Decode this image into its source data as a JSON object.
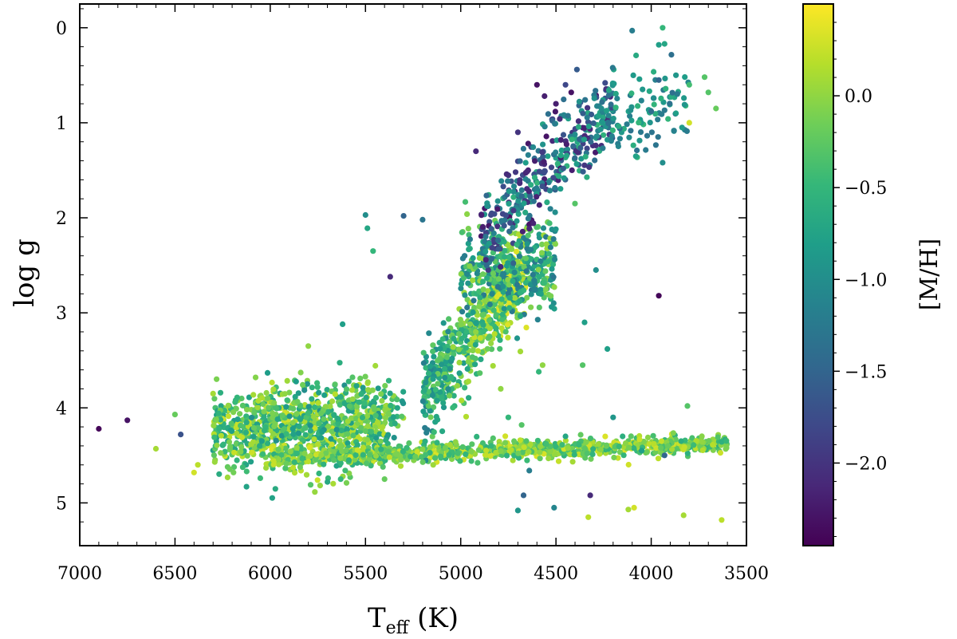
{
  "chart_data": {
    "type": "scatter",
    "title": "",
    "xlabel": "T",
    "xlabel_sub": "eff",
    "xlabel_unit": " (K)",
    "ylabel": "log g",
    "colorbar_label": "[M/H]",
    "xlim": [
      7000,
      3500
    ],
    "ylim": [
      5.45,
      -0.25
    ],
    "x_inverted": true,
    "y_inverted": true,
    "xticks": [
      7000,
      6500,
      6000,
      5500,
      5000,
      4500,
      4000,
      3500
    ],
    "xtick_labels": [
      "7000",
      "6500",
      "6000",
      "5500",
      "5000",
      "4500",
      "4000",
      "3500"
    ],
    "yticks": [
      0,
      1,
      2,
      3,
      4,
      5
    ],
    "ytick_labels": [
      "0",
      "1",
      "2",
      "3",
      "4",
      "5"
    ],
    "colorbar_range": [
      -2.45,
      0.5
    ],
    "colorbar_ticks": [
      0.0,
      -0.5,
      -1.0,
      -1.5,
      -2.0
    ],
    "colorbar_tick_labels": [
      "0.0",
      "−0.5",
      "−1.0",
      "−1.5",
      "−2.0"
    ],
    "colormap": "viridis",
    "colormap_stops": [
      "#440154",
      "#482878",
      "#3e4989",
      "#31688e",
      "#26828e",
      "#1f9e89",
      "#35b779",
      "#6ece58",
      "#b5de2b",
      "#fde725"
    ],
    "grid": false,
    "legend": "none",
    "series": [
      {
        "name": "",
        "points": [
          [
            6900,
            4.22,
            -2.4
          ],
          [
            6750,
            4.13,
            -2.3
          ],
          [
            6600,
            4.43,
            0.1
          ],
          [
            6500,
            4.07,
            -0.2
          ],
          [
            6470,
            4.28,
            -1.7
          ],
          [
            6400,
            4.68,
            0.3
          ],
          [
            6380,
            4.6,
            0.2
          ],
          [
            6300,
            3.85,
            0.1
          ],
          [
            5800,
            3.35,
            0.0
          ],
          [
            5620,
            3.12,
            -0.8
          ],
          [
            5630,
            4.75,
            -0.5
          ],
          [
            5400,
            4.75,
            -0.2
          ],
          [
            5500,
            1.97,
            -1.0
          ],
          [
            5490,
            2.11,
            -0.7
          ],
          [
            5460,
            2.35,
            -0.5
          ],
          [
            5370,
            2.62,
            -2.1
          ],
          [
            5300,
            1.98,
            -1.5
          ],
          [
            5200,
            2.02,
            -1.3
          ],
          [
            4920,
            1.3,
            -2.1
          ],
          [
            4600,
            0.6,
            -2.3
          ],
          [
            4560,
            0.72,
            -2.2
          ],
          [
            4450,
            0.6,
            -1.8
          ],
          [
            4390,
            0.44,
            -1.6
          ],
          [
            4420,
            0.68,
            -2.3
          ],
          [
            4500,
            0.8,
            -2.2
          ],
          [
            4480,
            0.96,
            -2.1
          ],
          [
            4700,
            1.1,
            -2.0
          ],
          [
            4100,
            0.03,
            -1.2
          ],
          [
            3940,
            0.0,
            -0.5
          ],
          [
            3960,
            0.18,
            -0.8
          ],
          [
            3930,
            0.17,
            -0.7
          ],
          [
            3960,
            0.55,
            -1.5
          ],
          [
            3870,
            0.5,
            -0.9
          ],
          [
            3800,
            0.6,
            -0.4
          ],
          [
            3720,
            0.52,
            -0.3
          ],
          [
            3700,
            0.68,
            -0.3
          ],
          [
            3660,
            0.85,
            -0.2
          ],
          [
            3800,
            1.0,
            0.3
          ],
          [
            3870,
            0.9,
            -0.8
          ],
          [
            3940,
            1.42,
            -1.0
          ],
          [
            4000,
            0.88,
            -1.4
          ],
          [
            3960,
            2.82,
            -2.4
          ],
          [
            4400,
            1.85,
            -0.3
          ],
          [
            4290,
            2.55,
            -1.0
          ],
          [
            4350,
            3.1,
            -0.8
          ],
          [
            4360,
            3.55,
            -0.3
          ],
          [
            4230,
            3.38,
            -0.8
          ],
          [
            4200,
            4.1,
            -0.9
          ],
          [
            4150,
            4.3,
            -0.6
          ],
          [
            4050,
            4.45,
            -0.8
          ],
          [
            3930,
            4.5,
            -1.5
          ],
          [
            3810,
            3.98,
            -0.3
          ],
          [
            4450,
            4.3,
            -0.7
          ],
          [
            4550,
            4.38,
            -0.4
          ],
          [
            4640,
            4.66,
            -1.2
          ],
          [
            4670,
            4.92,
            -1.5
          ],
          [
            4320,
            4.92,
            -2.1
          ],
          [
            4510,
            5.05,
            -1.1
          ],
          [
            4700,
            5.08,
            -0.9
          ],
          [
            4330,
            5.15,
            0.2
          ],
          [
            4120,
            5.07,
            0.1
          ],
          [
            4090,
            5.05,
            0.3
          ],
          [
            3830,
            5.13,
            0.1
          ],
          [
            3630,
            5.18,
            0.2
          ],
          [
            4570,
            3.55,
            0.0
          ],
          [
            4590,
            3.62,
            -0.5
          ],
          [
            4790,
            3.8,
            0.0
          ],
          [
            4750,
            4.1,
            -0.5
          ],
          [
            4680,
            4.18,
            -0.3
          ],
          [
            4720,
            4.35,
            -0.2
          ],
          [
            4840,
            4.4,
            -0.5
          ],
          [
            5410,
            4.2,
            0.1
          ]
        ],
        "regions": [
          {
            "t_range": [
              6300,
              5400
            ],
            "g_center": 4.25,
            "g_spread": 0.2,
            "mh_range": [
              -0.8,
              0.3
            ],
            "count": 700
          },
          {
            "t_range": [
              6100,
              5300
            ],
            "g_center": 4.05,
            "g_spread": 0.18,
            "mh_range": [
              -1.0,
              0.2
            ],
            "count": 250
          },
          {
            "t_range": [
              6000,
              3600
            ],
            "g_center": 4.52,
            "g_spread": 0.05,
            "g_slope_per_1000K": -0.06,
            "mh_range": [
              -0.6,
              0.35
            ],
            "count": 900
          },
          {
            "t_range": [
              5200,
              4650
            ],
            "g_center": 3.3,
            "g_spread": 0.5,
            "mh_range": [
              -1.2,
              0.35
            ],
            "count": 600
          },
          {
            "t_range": [
              5000,
              4500
            ],
            "g_center": 2.55,
            "g_spread": 0.25,
            "mh_range": [
              -1.3,
              0.1
            ],
            "count": 350
          },
          {
            "t_range": [
              4900,
              4200
            ],
            "g_center": 1.6,
            "g_spread": 0.45,
            "mh_range": [
              -2.3,
              -0.5
            ],
            "count": 350
          },
          {
            "t_range": [
              4300,
              3800
            ],
            "g_center": 0.9,
            "g_spread": 0.2,
            "mh_range": [
              -1.4,
              -0.5
            ],
            "count": 120
          }
        ]
      }
    ]
  }
}
